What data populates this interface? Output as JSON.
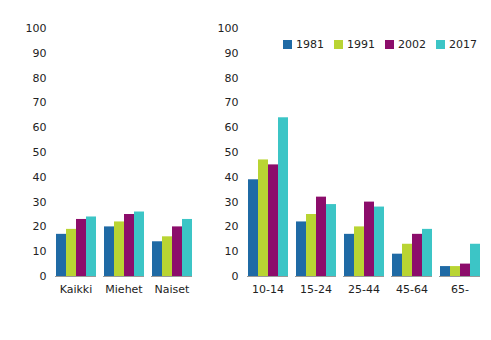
{
  "chart_data": {
    "type": "bar",
    "categories": [
      "Kaikki",
      "Miehet",
      "Naiset",
      null,
      "10-14",
      "15-24",
      "25-44",
      "45-64",
      "65-"
    ],
    "series": [
      {
        "name": "1981",
        "color": "#1f6aa5",
        "values": [
          17,
          20,
          14,
          null,
          39,
          22,
          17,
          9,
          4
        ]
      },
      {
        "name": "1991",
        "color": "#b9d433",
        "values": [
          19,
          22,
          16,
          null,
          47,
          25,
          20,
          13,
          4
        ]
      },
      {
        "name": "2002",
        "color": "#8c0d6b",
        "values": [
          23,
          25,
          20,
          null,
          45,
          32,
          30,
          17,
          5
        ]
      },
      {
        "name": "2017",
        "color": "#3cc5c6",
        "values": [
          24,
          26,
          23,
          null,
          64,
          29,
          28,
          19,
          13
        ]
      }
    ],
    "ylim": [
      0,
      100
    ],
    "yticks": [
      0,
      10,
      20,
      30,
      40,
      50,
      60,
      70,
      80,
      90,
      100
    ],
    "grid": false,
    "legend": "top-right"
  }
}
